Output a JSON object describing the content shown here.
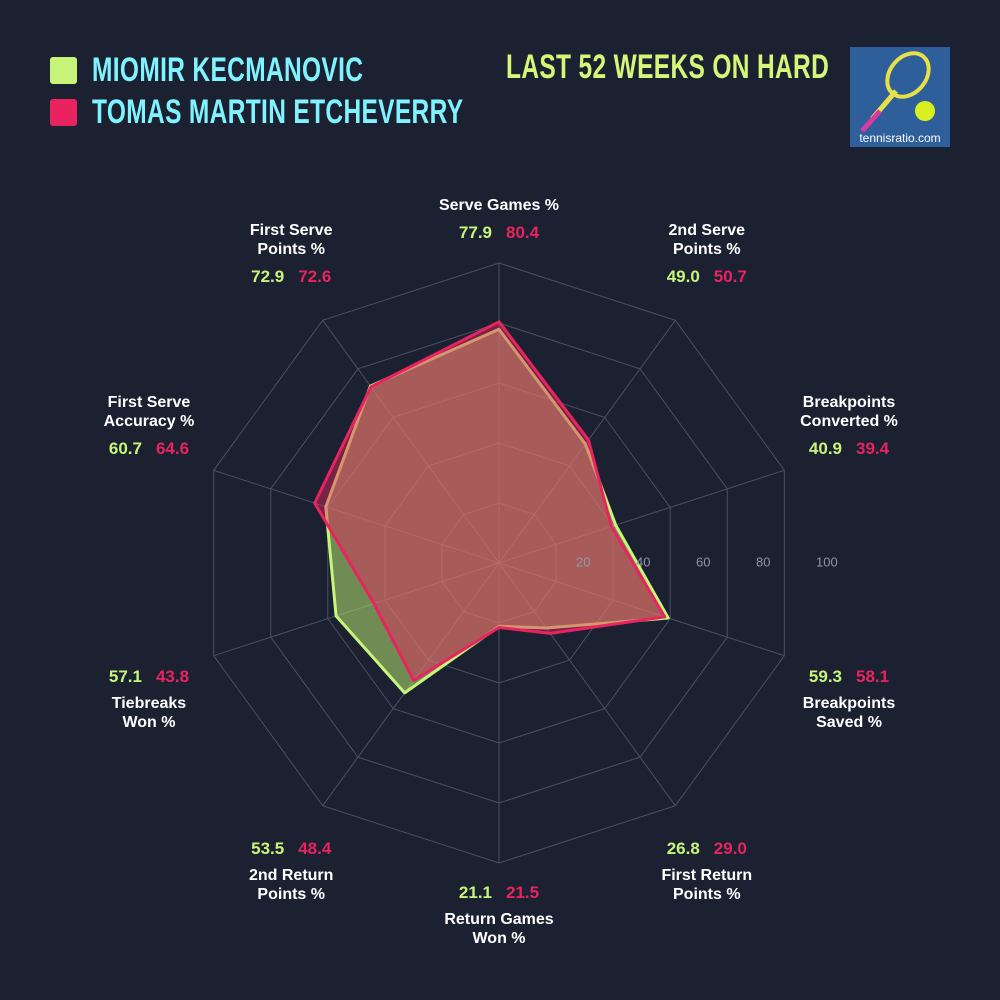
{
  "chart_data": {
    "type": "radar",
    "title": "LAST 52 WEEKS ON HARD",
    "watermark": "tennisratio.com",
    "categories": [
      "Serve Games %",
      "2nd Serve\nPoints %",
      "Breakpoints\nConverted %",
      "Breakpoints\nSaved %",
      "First Return\nPoints %",
      "Return Games\nWon %",
      "2nd Return\nPoints %",
      "Tiebreaks\nWon %",
      "First Serve\nAccuracy %",
      "First Serve\nPoints %"
    ],
    "series": [
      {
        "name": "MIOMIR KECMANOVIC",
        "color": "#c6f57a",
        "values": [
          77.9,
          49.0,
          40.9,
          59.3,
          26.8,
          21.1,
          53.5,
          57.1,
          60.7,
          72.9
        ],
        "value_labels": [
          "77.9",
          "49.0",
          "40.9",
          "59.3",
          "26.8",
          "21.1",
          "53.5",
          "57.1",
          "60.7",
          "72.9"
        ]
      },
      {
        "name": "TOMAS MARTIN ETCHEVERRY",
        "color": "#e8235f",
        "values": [
          80.4,
          50.7,
          39.4,
          58.1,
          29.0,
          21.5,
          48.4,
          43.8,
          64.6,
          72.6
        ],
        "value_labels": [
          "80.4",
          "50.7",
          "39.4",
          "58.1",
          "29.0",
          "21.5",
          "48.4",
          "43.8",
          "64.6",
          "72.6"
        ]
      }
    ],
    "ylim": [
      0,
      100
    ],
    "yticks": [
      20,
      40,
      60,
      80,
      100
    ],
    "grid": true
  }
}
